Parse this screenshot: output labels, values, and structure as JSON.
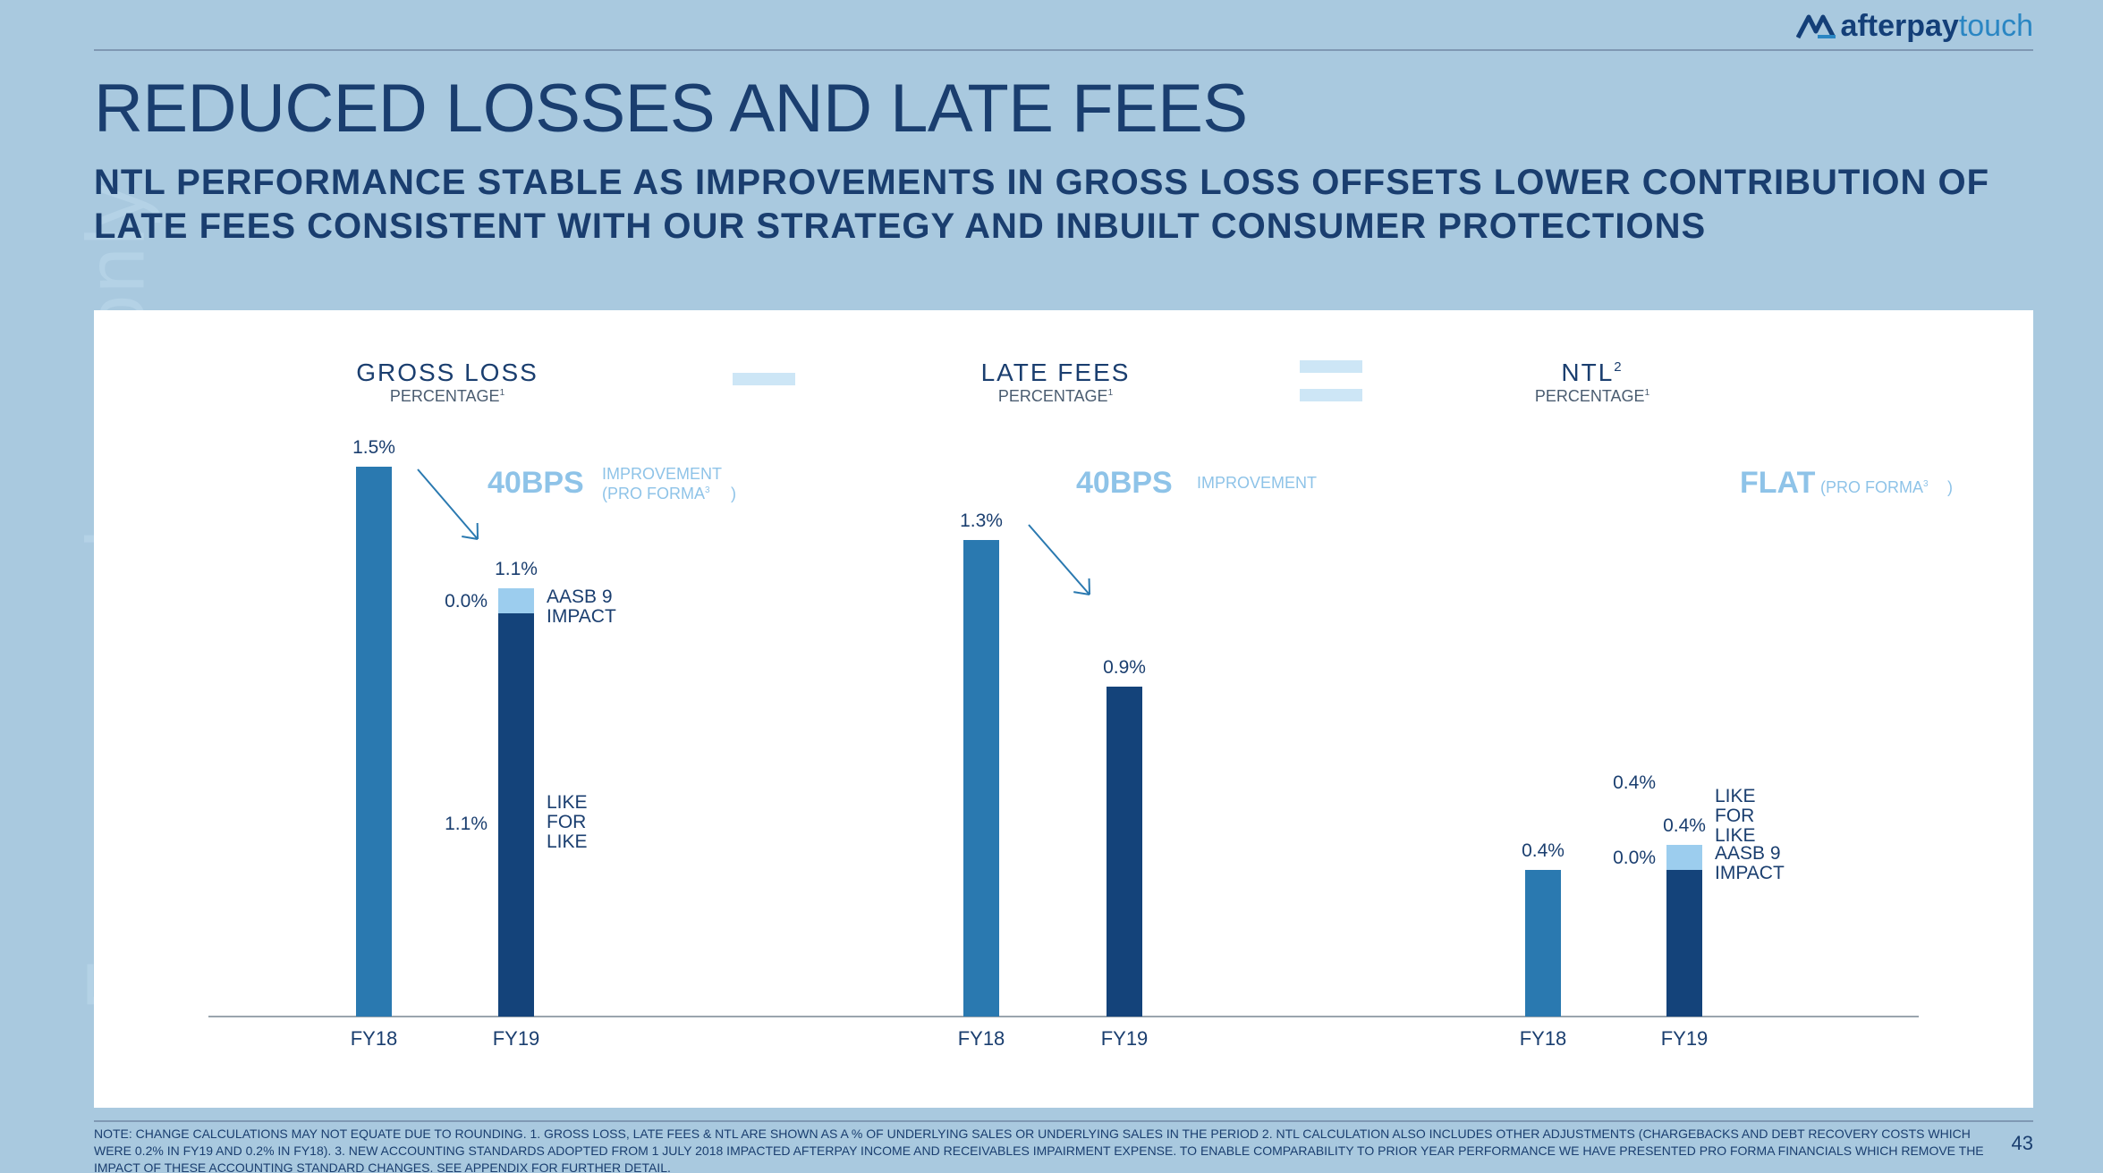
{
  "watermark": "For personal use only",
  "brand": {
    "name_bold": "afterpay",
    "name_light": "touch",
    "logo_icon": "afterpay-logo-icon"
  },
  "title": "REDUCED LOSSES AND LATE FEES",
  "subtitle": "NTL PERFORMANCE STABLE AS IMPROVEMENTS IN GROSS LOSS OFFSETS LOWER CONTRIBUTION OF LATE FEES CONSISTENT WITH OUR STRATEGY AND INBUILT CONSUMER PROTECTIONS",
  "operators": {
    "minus": "minus-icon",
    "equals": "equals-icon"
  },
  "colors": {
    "fy18": "#2a79b0",
    "like_for_like": "#14437a",
    "aasb9": "#9ccdee",
    "accent_light": "#8ec3e8",
    "axis": "#9aa5ae",
    "text": "#1a3e6f"
  },
  "chart_data": [
    {
      "type": "bar",
      "title": "GROSS LOSS",
      "subtitle": "PERCENTAGE",
      "subtitle_sup": "1",
      "categories": [
        "FY18",
        "FY19"
      ],
      "bars": [
        {
          "category": "FY18",
          "value": 1.5,
          "label": "1.5%"
        },
        {
          "category": "FY19",
          "label": "1.1%",
          "segments": [
            {
              "name": "LIKE FOR LIKE",
              "value": 1.1,
              "label": "1.1%"
            },
            {
              "name": "AASB 9 IMPACT",
              "value": 0.0,
              "label": "0.0%"
            }
          ]
        }
      ],
      "callout": {
        "big": "40BPS",
        "small_line1": "IMPROVEMENT",
        "small_line2": "(PRO FORMA",
        "small_sup": "3",
        "small_close": ")"
      }
    },
    {
      "type": "bar",
      "title": "LATE FEES",
      "subtitle": "PERCENTAGE",
      "subtitle_sup": "1",
      "categories": [
        "FY18",
        "FY19"
      ],
      "bars": [
        {
          "category": "FY18",
          "value": 1.3,
          "label": "1.3%"
        },
        {
          "category": "FY19",
          "value": 0.9,
          "label": "0.9%"
        }
      ],
      "callout": {
        "big": "40BPS",
        "small_line1": "IMPROVEMENT"
      }
    },
    {
      "type": "bar",
      "title": "NTL",
      "title_sup": "2",
      "subtitle": "PERCENTAGE",
      "subtitle_sup": "1",
      "categories": [
        "FY18",
        "FY19"
      ],
      "bars": [
        {
          "category": "FY18",
          "value": 0.4,
          "label": "0.4%"
        },
        {
          "category": "FY19",
          "label": "0.4%",
          "segments": [
            {
              "name": "LIKE FOR LIKE",
              "value": 0.4,
              "label": "0.4%"
            },
            {
              "name": "AASB 9 IMPACT",
              "value": 0.0,
              "label": "0.0%"
            }
          ]
        }
      ],
      "callout": {
        "big": "FLAT",
        "small_line1": "(PRO FORMA",
        "small_sup": "3",
        "small_close": ")"
      }
    }
  ],
  "segment_labels": {
    "aasb9": [
      "AASB 9",
      "IMPACT"
    ],
    "like_for_like": [
      "LIKE",
      "FOR",
      "LIKE"
    ]
  },
  "footnote": "NOTE: CHANGE CALCULATIONS MAY NOT EQUATE DUE TO ROUNDING. 1. GROSS LOSS, LATE FEES & NTL ARE SHOWN AS A % OF UNDERLYING SALES OR UNDERLYING SALES IN THE PERIOD 2. NTL CALCULATION ALSO INCLUDES OTHER ADJUSTMENTS (CHARGEBACKS AND DEBT RECOVERY COSTS WHICH WERE 0.2% IN FY19 AND 0.2% IN FY18). 3. NEW ACCOUNTING STANDARDS ADOPTED FROM 1 JULY 2018 IMPACTED AFTERPAY INCOME AND RECEIVABLES IMPAIRMENT EXPENSE. TO ENABLE COMPARABILITY TO PRIOR YEAR PERFORMANCE WE HAVE PRESENTED PRO FORMA FINANCIALS WHICH REMOVE THE IMPACT OF THESE ACCOUNTING STANDARD CHANGES. SEE APPENDIX FOR FURTHER DETAIL.",
  "page_number": "43"
}
